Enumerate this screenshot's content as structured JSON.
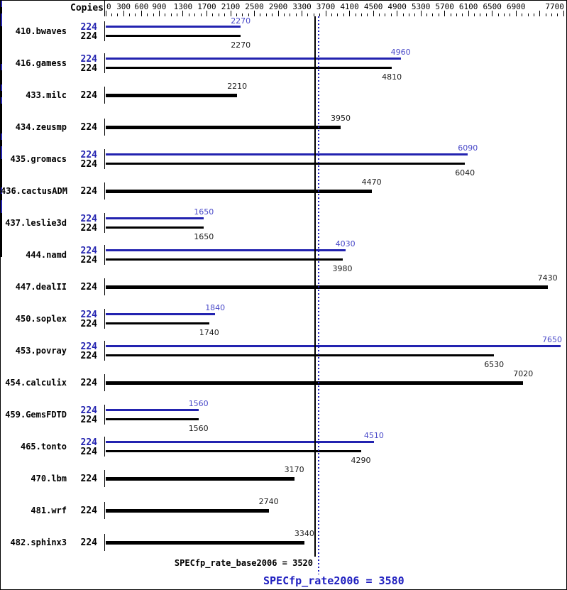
{
  "header": {
    "copies_label": "Copies"
  },
  "chart_data": {
    "type": "bar",
    "orientation": "horizontal",
    "value_axis": {
      "min": 0,
      "max": 7700,
      "minor_step": 100,
      "labeled_ticks": [
        0,
        300,
        600,
        900,
        1300,
        1700,
        2100,
        2500,
        2900,
        3300,
        3700,
        4100,
        4500,
        4900,
        5300,
        5700,
        6100,
        6500,
        6900,
        7700
      ],
      "unlabeled_major_ticks": [
        7300
      ]
    },
    "legend_note": "blue bars = peak (SPECfp_rate2006), black bars = base (SPECfp_rate_base2006)",
    "colors": {
      "peak_bar": "#2323b0",
      "peak_value_label": "#4747c8",
      "base_bar": "#000000",
      "base_value_label": "#1a1a1a",
      "mean_peak": "#2020c0",
      "mean_base": "#000000"
    },
    "benchmarks": [
      {
        "name": "410.bwaves",
        "runs": [
          {
            "kind": "peak",
            "copies": "224",
            "value": 2270,
            "end_ticks": 1
          },
          {
            "kind": "base",
            "copies": "224",
            "value": 2270,
            "end_ticks": 1
          }
        ]
      },
      {
        "name": "416.gamess",
        "runs": [
          {
            "kind": "peak",
            "copies": "224",
            "value": 4960,
            "end_ticks": 2
          },
          {
            "kind": "base",
            "copies": "224",
            "value": 4810,
            "end_ticks": 1
          }
        ]
      },
      {
        "name": "433.milc",
        "runs": [
          {
            "kind": "base",
            "copies": "224",
            "value": 2210,
            "end_ticks": 1
          }
        ]
      },
      {
        "name": "434.zeusmp",
        "runs": [
          {
            "kind": "base",
            "copies": "224",
            "value": 3950,
            "end_ticks": 3
          }
        ]
      },
      {
        "name": "435.gromacs",
        "runs": [
          {
            "kind": "peak",
            "copies": "224",
            "value": 6090,
            "end_ticks": 1
          },
          {
            "kind": "base",
            "copies": "224",
            "value": 6040,
            "end_ticks": 1
          }
        ]
      },
      {
        "name": "436.cactusADM",
        "runs": [
          {
            "kind": "base",
            "copies": "224",
            "value": 4470,
            "end_ticks": 1
          }
        ]
      },
      {
        "name": "437.leslie3d",
        "runs": [
          {
            "kind": "peak",
            "copies": "224",
            "value": 1650,
            "end_ticks": 1
          },
          {
            "kind": "base",
            "copies": "224",
            "value": 1650,
            "end_ticks": 1
          }
        ]
      },
      {
        "name": "444.namd",
        "runs": [
          {
            "kind": "peak",
            "copies": "224",
            "value": 4030,
            "end_ticks": 1
          },
          {
            "kind": "base",
            "copies": "224",
            "value": 3980,
            "end_ticks": 1
          }
        ]
      },
      {
        "name": "447.dealII",
        "runs": [
          {
            "kind": "base",
            "copies": "224",
            "value": 7430,
            "end_ticks": 3
          }
        ]
      },
      {
        "name": "450.soplex",
        "runs": [
          {
            "kind": "peak",
            "copies": "224",
            "value": 1840,
            "end_ticks": 1
          },
          {
            "kind": "base",
            "copies": "224",
            "value": 1740,
            "end_ticks": 1
          }
        ]
      },
      {
        "name": "453.povray",
        "runs": [
          {
            "kind": "peak",
            "copies": "224",
            "value": 7650,
            "end_ticks": 2
          },
          {
            "kind": "base",
            "copies": "224",
            "value": 6530,
            "end_ticks": 2
          }
        ]
      },
      {
        "name": "454.calculix",
        "runs": [
          {
            "kind": "base",
            "copies": "224",
            "value": 7020,
            "end_ticks": 2
          }
        ]
      },
      {
        "name": "459.GemsFDTD",
        "runs": [
          {
            "kind": "peak",
            "copies": "224",
            "value": 1560,
            "end_ticks": 1
          },
          {
            "kind": "base",
            "copies": "224",
            "value": 1560,
            "end_ticks": 1
          }
        ]
      },
      {
        "name": "465.tonto",
        "runs": [
          {
            "kind": "peak",
            "copies": "224",
            "value": 4510,
            "end_ticks": 2
          },
          {
            "kind": "base",
            "copies": "224",
            "value": 4290,
            "end_ticks": 2
          }
        ]
      },
      {
        "name": "470.lbm",
        "runs": [
          {
            "kind": "base",
            "copies": "224",
            "value": 3170,
            "end_ticks": 1
          }
        ]
      },
      {
        "name": "481.wrf",
        "runs": [
          {
            "kind": "base",
            "copies": "224",
            "value": 2740,
            "end_ticks": 1
          }
        ]
      },
      {
        "name": "482.sphinx3",
        "runs": [
          {
            "kind": "base",
            "copies": "224",
            "value": 3340,
            "end_ticks": 2
          }
        ]
      }
    ],
    "means": {
      "base": {
        "metric": "SPECfp_rate_base2006",
        "value": 3520,
        "text": "SPECfp_rate_base2006 = 3520"
      },
      "peak": {
        "metric": "SPECfp_rate2006",
        "value": 3580,
        "text": "SPECfp_rate2006 = 3580"
      }
    }
  }
}
